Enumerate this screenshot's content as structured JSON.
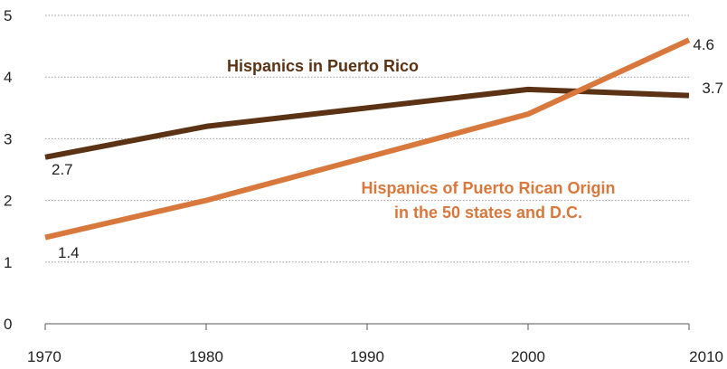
{
  "chart_data": {
    "type": "line",
    "title": "",
    "xlabel": "",
    "ylabel": "",
    "x": [
      1970,
      1980,
      1990,
      2000,
      2010
    ],
    "ylim": [
      0,
      5
    ],
    "yticks": [
      0,
      1,
      2,
      3,
      4,
      5
    ],
    "xticks": [
      "1970",
      "1980",
      "1990",
      "2000",
      "2010"
    ],
    "grid": "horizontal dotted",
    "series": [
      {
        "name": "Hispanics in Puerto Rico",
        "color": "#5b3214",
        "values": [
          2.7,
          3.2,
          3.5,
          3.8,
          3.7
        ],
        "label_lines": [
          "Hispanics in Puerto Rico"
        ],
        "start_label": "2.7",
        "end_label": "3.7"
      },
      {
        "name": "Hispanics of Puerto Rican Origin in the 50 states and D.C.",
        "color": "#d8783c",
        "values": [
          1.4,
          2.0,
          2.7,
          3.4,
          4.6
        ],
        "label_lines": [
          "Hispanics of Puerto Rican Origin",
          "in the 50 states and D.C."
        ],
        "start_label": "1.4",
        "end_label": "4.6"
      }
    ]
  }
}
